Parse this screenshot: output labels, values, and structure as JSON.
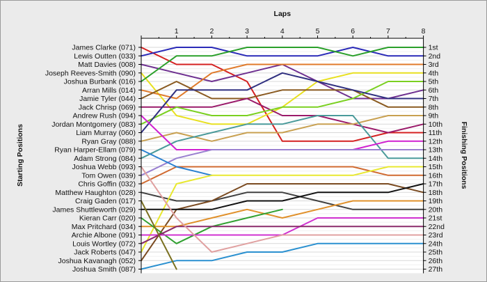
{
  "chart_data": {
    "type": "line",
    "title": "Laps",
    "ylabel_left": "Starting Positions",
    "ylabel_right": "Finishing Positions",
    "x_ticks": [
      "1",
      "2",
      "3",
      "4",
      "5",
      "6",
      "7",
      "8"
    ],
    "finishing_positions": [
      "1st",
      "2nd",
      "3rd",
      "4th",
      "5th",
      "6th",
      "7th",
      "8th",
      "9th",
      "10th",
      "11th",
      "12th",
      "13th",
      "14th",
      "15th",
      "16th",
      "17th",
      "18th",
      "19th",
      "20th",
      "21st",
      "22nd",
      "23rd",
      "24th",
      "25th",
      "26th",
      "27th"
    ],
    "grid": true,
    "series": [
      {
        "name": "James Clarke (071)",
        "color": "#d42020",
        "positions": [
          1,
          3,
          3,
          5,
          12,
          12,
          12,
          11,
          11
        ]
      },
      {
        "name": "Lewis Outten (033)",
        "color": "#2a2ab8",
        "positions": [
          2,
          1,
          1,
          2,
          2,
          2,
          1,
          2,
          2
        ]
      },
      {
        "name": "Matt Davies (008)",
        "color": "#6e3090",
        "positions": [
          3,
          4,
          5,
          4,
          3,
          5,
          7,
          7,
          6
        ]
      },
      {
        "name": "Joseph Reeves-Smith (090)",
        "color": "#e8e020",
        "positions": [
          4,
          9,
          10,
          10,
          8,
          5,
          4,
          4,
          4
        ]
      },
      {
        "name": "Joshua Burbank (016)",
        "color": "#2aa02a",
        "positions": [
          5,
          2,
          2,
          1,
          1,
          1,
          2,
          1,
          1
        ]
      },
      {
        "name": "Arran Mills (014)",
        "color": "#e07a2a",
        "positions": [
          6,
          7,
          4,
          3,
          3,
          3,
          3,
          3,
          3
        ]
      },
      {
        "name": "Jamie Tyler (044)",
        "color": "#8a5a20",
        "positions": [
          7,
          5,
          7,
          7,
          6,
          6,
          6,
          8,
          8
        ]
      },
      {
        "name": "Jack Chrisp (069)",
        "color": "#9a1a6a",
        "positions": [
          8,
          8,
          8,
          7,
          9,
          9,
          10,
          11,
          10
        ]
      },
      {
        "name": "Jordan Montgomery (083)",
        "color": "#7ad020",
        "positions": [
          10,
          8,
          9,
          9,
          8,
          8,
          7,
          5,
          5
        ]
      },
      {
        "name": "Liam Murray (060)",
        "color": "#303080",
        "positions": [
          11,
          6,
          6,
          6,
          4,
          5,
          6,
          7,
          7
        ]
      },
      {
        "name": "Ryan Gray (088)",
        "color": "#c8a050",
        "positions": [
          12,
          11,
          12,
          11,
          11,
          10,
          10,
          9,
          9
        ]
      },
      {
        "name": "Adam Strong (084)",
        "color": "#4a9a9a",
        "positions": [
          14,
          12,
          11,
          10,
          10,
          9,
          9,
          14,
          14
        ]
      },
      {
        "name": "Andrew Rush (094)",
        "color": "#d020d0",
        "positions": [
          9,
          13,
          13,
          13,
          13,
          13,
          13,
          12,
          12
        ]
      },
      {
        "name": "Tom Owen (039)",
        "color": "#9a80d0",
        "positions": [
          16,
          14,
          13,
          13,
          13,
          13,
          13,
          13,
          13
        ]
      },
      {
        "name": "Chris Goffin (032)",
        "color": "#d06a30",
        "positions": [
          17,
          15,
          15,
          15,
          15,
          15,
          15,
          16,
          16
        ]
      },
      {
        "name": "Ryan Harper-Ellam (079)",
        "color": "#2a80d0",
        "positions": [
          13,
          15,
          16,
          null,
          null,
          null,
          null,
          null,
          null
        ]
      },
      {
        "name": "Matthew Haughton (028)",
        "color": "#404040",
        "positions": [
          18,
          19,
          19,
          18,
          18,
          19,
          20,
          20,
          20
        ]
      },
      {
        "name": "Joshua Kavanagh (052)",
        "color": "#7a4a20",
        "positions": [
          26,
          20,
          19,
          17,
          17,
          17,
          17,
          17,
          18
        ]
      },
      {
        "name": "Jack Roberts (047)",
        "color": "#e8e830",
        "positions": [
          25,
          17,
          16,
          16,
          16,
          16,
          16,
          15,
          15
        ]
      },
      {
        "name": "James Shuttleworth (029)",
        "color": "#111111",
        "positions": [
          20,
          20,
          20,
          19,
          19,
          18,
          18,
          18,
          17
        ]
      },
      {
        "name": "Max Pritchard (034)",
        "color": "#e0902a",
        "positions": [
          22,
          22,
          21,
          20,
          21,
          20,
          19,
          19,
          19
        ]
      },
      {
        "name": "Kieran Carr (020)",
        "color": "#30a030",
        "positions": [
          21,
          24,
          22,
          21,
          20,
          null,
          null,
          null,
          null
        ]
      },
      {
        "name": "Archie Albone (091)",
        "color": "#d030d0",
        "positions": [
          23,
          23,
          23,
          23,
          23,
          21,
          21,
          21,
          21
        ]
      },
      {
        "name": "Louis Wortley (072)",
        "color": "#8a2a6a",
        "positions": [
          24,
          22,
          22,
          22,
          22,
          22,
          22,
          22,
          22
        ]
      },
      {
        "name": "Joshua Webb (093)",
        "color": "#e0a0a0",
        "positions": [
          15,
          21,
          25,
          24,
          23,
          23,
          23,
          23,
          23
        ]
      },
      {
        "name": "Joshua Smith (087)",
        "color": "#2a90d0",
        "positions": [
          27,
          26,
          26,
          25,
          25,
          24,
          24,
          24,
          24
        ]
      },
      {
        "name": "Craig Gaden (017)",
        "color": "#7a7020",
        "positions": [
          19,
          27,
          null,
          null,
          null,
          null,
          null,
          null,
          null
        ]
      }
    ]
  }
}
